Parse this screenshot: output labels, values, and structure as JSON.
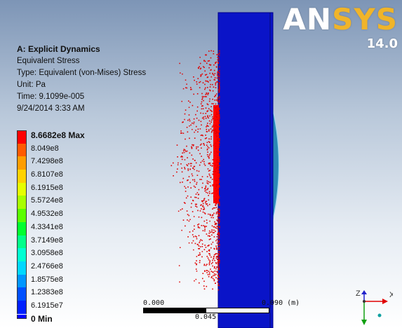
{
  "brand": {
    "logo": "ANSYS",
    "logo_main": "AN",
    "logo_accent": "SYS",
    "version": "14.0"
  },
  "info": {
    "analysis": "A: Explicit Dynamics",
    "result": "Equivalent Stress",
    "type": "Type: Equivalent (von-Mises) Stress",
    "unit": "Unit: Pa",
    "time": "Time: 9.1099e-005",
    "date": "9/24/2014 3:33 AM"
  },
  "legend": {
    "items": [
      {
        "label": "8.6682e8 Max",
        "color": "#ff0000"
      },
      {
        "label": "8.049e8",
        "color": "#ff5a00"
      },
      {
        "label": "7.4298e8",
        "color": "#ff9d00"
      },
      {
        "label": "6.8107e8",
        "color": "#ffd200"
      },
      {
        "label": "6.1915e8",
        "color": "#e6ff00"
      },
      {
        "label": "5.5724e8",
        "color": "#a8ff00"
      },
      {
        "label": "4.9532e8",
        "color": "#5aff00"
      },
      {
        "label": "4.3341e8",
        "color": "#00ff30"
      },
      {
        "label": "3.7149e8",
        "color": "#00ff8a"
      },
      {
        "label": "3.0958e8",
        "color": "#00ffd2"
      },
      {
        "label": "2.4766e8",
        "color": "#00d8ff"
      },
      {
        "label": "1.8575e8",
        "color": "#0096ff"
      },
      {
        "label": "1.2383e8",
        "color": "#0050ff"
      },
      {
        "label": "6.1915e7",
        "color": "#0020ff"
      },
      {
        "label": "0 Min",
        "color": "#0000ff"
      }
    ]
  },
  "scale_bar": {
    "start": "0.000",
    "end": "0.090 (m)",
    "mid": "0.045"
  },
  "triad": {
    "x_label": "X",
    "z_label": "Z",
    "x_color": "#e00000",
    "z_color": "#2222cc",
    "y_color": "#10a010"
  },
  "model": {
    "plate_color": "#0a14c8",
    "edge_color": "#00008a",
    "particle_color": "#e00000",
    "bulge_color": "#1a7fb0"
  }
}
